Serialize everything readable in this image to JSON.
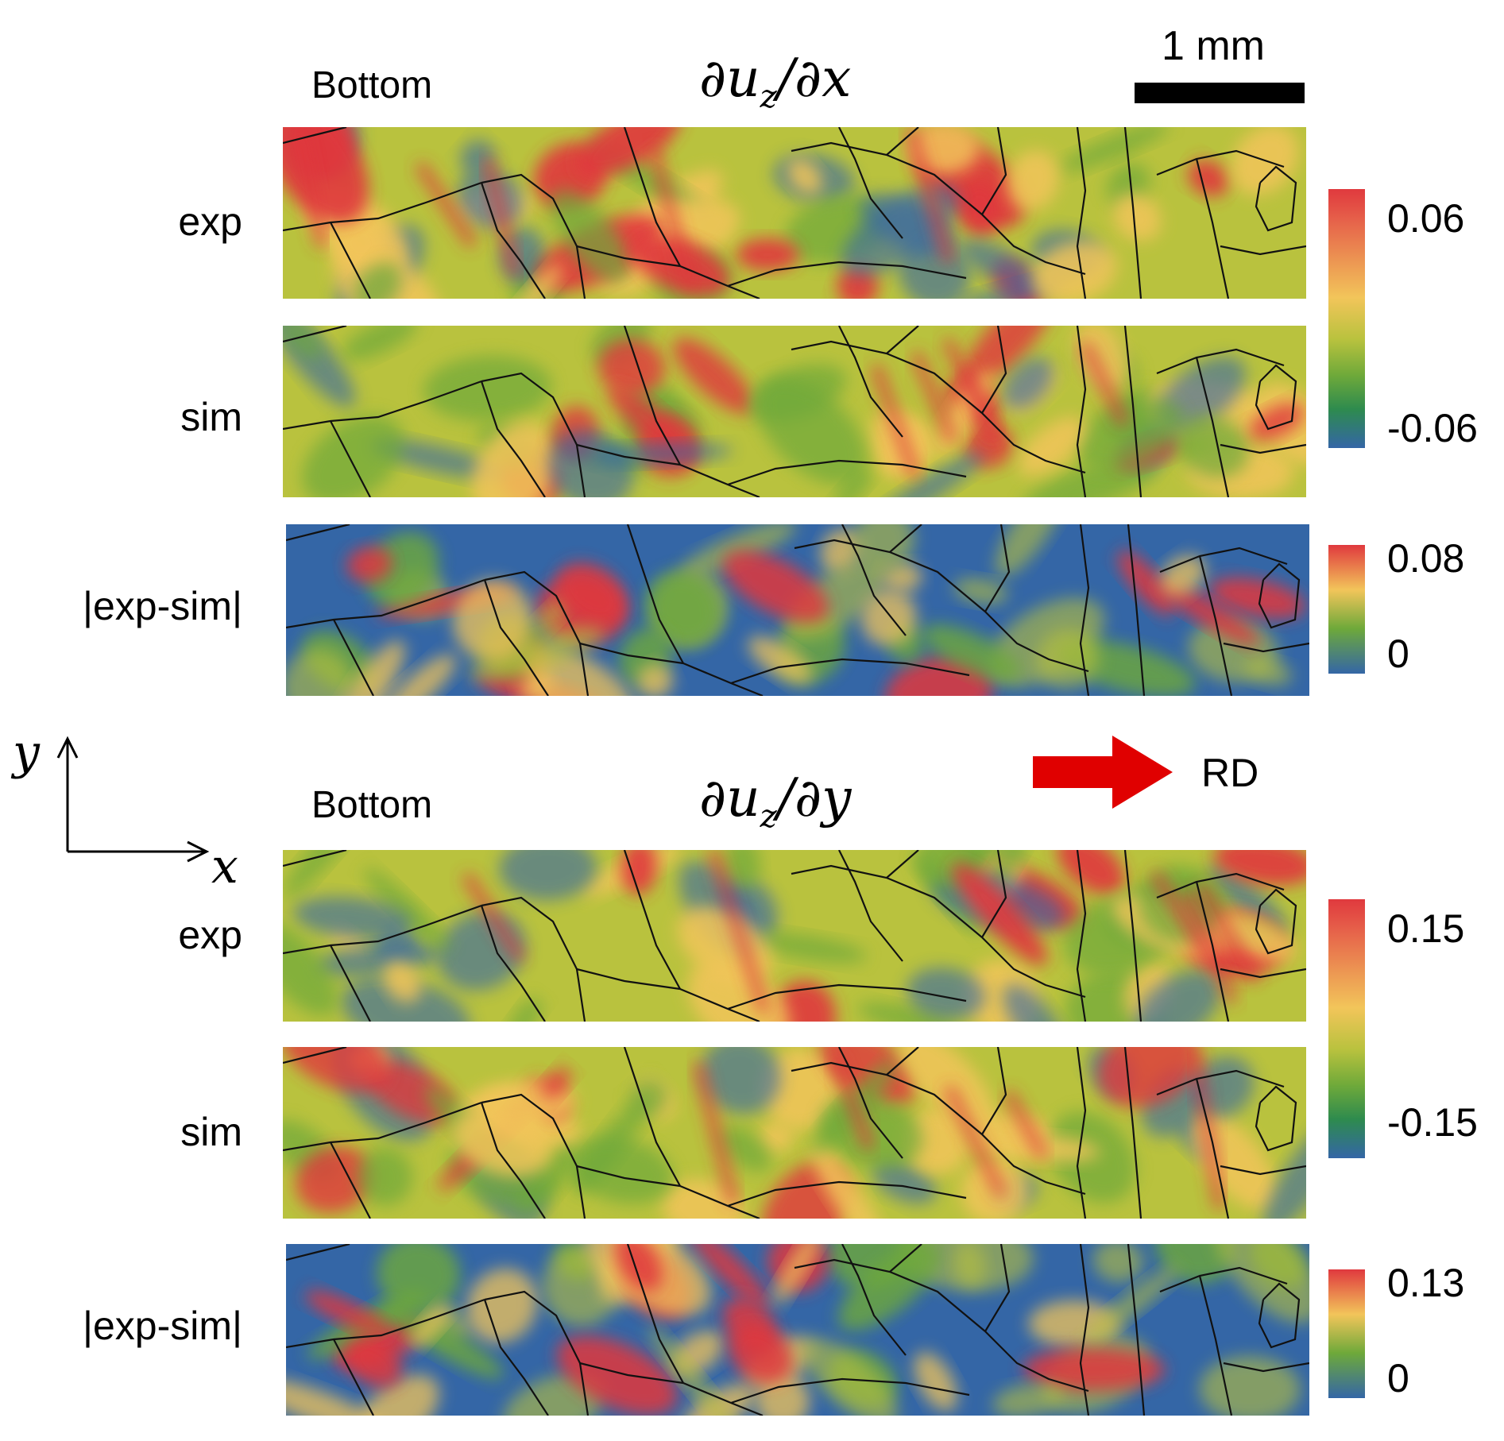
{
  "scale_bar": {
    "label": "1 mm"
  },
  "direction": {
    "label": "RD"
  },
  "axes": {
    "y": "y",
    "x": "x"
  },
  "blocks": [
    {
      "side_label": "Bottom",
      "title": "∂u_z/∂x",
      "rows": [
        {
          "label": "exp",
          "kind": "exp"
        },
        {
          "label": "sim",
          "kind": "sim"
        },
        {
          "label": "|exp-sim|",
          "kind": "diff"
        }
      ],
      "colorbars": [
        {
          "max": "0.06",
          "min": "-0.06"
        },
        {
          "max": "0.08",
          "min": "0"
        }
      ]
    },
    {
      "side_label": "Bottom",
      "title": "∂u_z/∂y",
      "rows": [
        {
          "label": "exp",
          "kind": "exp"
        },
        {
          "label": "sim",
          "kind": "sim"
        },
        {
          "label": "|exp-sim|",
          "kind": "diff"
        }
      ],
      "colorbars": [
        {
          "max": "0.15",
          "min": "-0.15"
        },
        {
          "max": "0.13",
          "min": "0"
        }
      ]
    }
  ],
  "colors": {
    "red": "#e0393e",
    "yellow": "#f2c55a",
    "lightgreen": "#b9c23e",
    "green": "#6ea93a",
    "darkgreen": "#2e8b4e",
    "blue": "#3466a6",
    "arrow": "#e00000"
  }
}
